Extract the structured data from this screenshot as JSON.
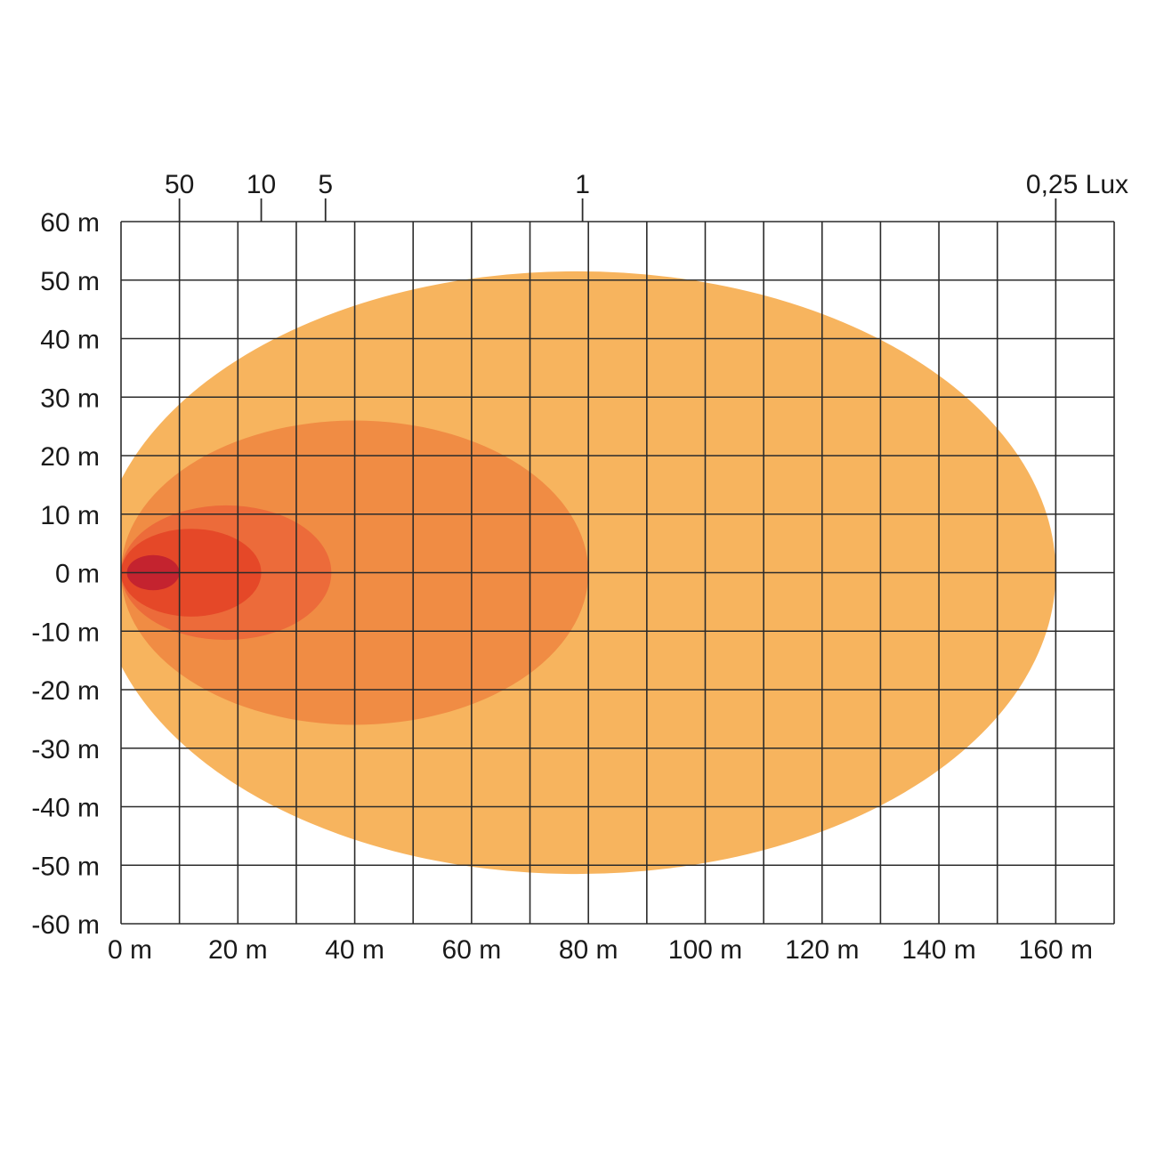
{
  "chart_data": {
    "type": "area",
    "title": "",
    "xlabel": "",
    "ylabel": "",
    "x_unit": "m",
    "y_unit": "m",
    "xlim": [
      0,
      170
    ],
    "ylim": [
      -60,
      60
    ],
    "grid": true,
    "grid_step_x": 10,
    "grid_step_y": 10,
    "x_tick_labels": [
      "0 m",
      "20 m",
      "40 m",
      "60 m",
      "80 m",
      "100 m",
      "120 m",
      "140 m",
      "160 m"
    ],
    "y_tick_labels": [
      "60 m",
      "50 m",
      "40 m",
      "30 m",
      "20 m",
      "10 m",
      "0 m",
      "-10 m",
      "-20 m",
      "-30 m",
      "-40 m",
      "-50 m",
      "-60 m"
    ],
    "lux_markers": [
      {
        "label": "50",
        "distance_m": 10
      },
      {
        "label": "10",
        "distance_m": 24
      },
      {
        "label": "5",
        "distance_m": 35
      },
      {
        "label": "1",
        "distance_m": 79
      },
      {
        "label": "0,25 Lux",
        "distance_m": 160
      }
    ],
    "zones": [
      {
        "lux": "0,25",
        "x_min": 0,
        "x_max": 160,
        "half_width": 51.5,
        "center_x": 78,
        "color": "#F7B45E"
      },
      {
        "lux": "1",
        "x_min": 0,
        "x_max": 79,
        "half_width": 26,
        "center_x": 40,
        "color": "#F08C44"
      },
      {
        "lux": "5",
        "x_min": 0,
        "x_max": 35,
        "half_width": 11.5,
        "center_x": 18,
        "color": "#EC6B3A"
      },
      {
        "lux": "10",
        "x_min": 0,
        "x_max": 24,
        "half_width": 7.5,
        "center_x": 12,
        "color": "#E54828"
      },
      {
        "lux": "50",
        "x_min": 1,
        "x_max": 10,
        "half_width": 3,
        "center_x": 5.5,
        "color": "#C4232F"
      }
    ]
  }
}
